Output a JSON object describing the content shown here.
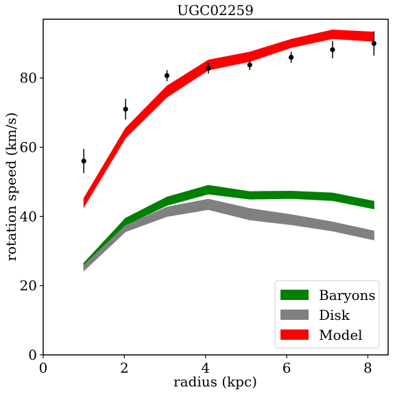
{
  "chart_data": {
    "type": "line",
    "title": "UGC02259",
    "xlabel": "radius (kpc)",
    "ylabel": "rotation speed (km/s)",
    "xlim": [
      0,
      8.5
    ],
    "ylim": [
      0,
      97
    ],
    "xticks": [
      0,
      2,
      4,
      6,
      8
    ],
    "yticks": [
      0,
      20,
      40,
      60,
      80
    ],
    "grid": false,
    "legend_position": "lower-right",
    "x": [
      1.0,
      2.03,
      3.05,
      4.07,
      5.09,
      6.11,
      7.13,
      8.15
    ],
    "series": [
      {
        "name": "Baryons",
        "kind": "band",
        "color": "#008000",
        "lower": [
          25.0,
          37.5,
          43.2,
          46.5,
          45.0,
          45.2,
          44.6,
          42.2
        ],
        "upper": [
          26.5,
          39.5,
          45.6,
          49.0,
          47.2,
          47.3,
          46.8,
          44.4
        ]
      },
      {
        "name": "Disk",
        "kind": "band",
        "color": "#808080",
        "lower": [
          24.3,
          35.6,
          40.0,
          42.0,
          39.0,
          37.6,
          35.8,
          33.2
        ],
        "upper": [
          25.9,
          37.4,
          42.7,
          45.0,
          42.3,
          40.5,
          38.4,
          35.8
        ]
      },
      {
        "name": "Model",
        "kind": "band",
        "color": "#ff0000",
        "lower": [
          42.7,
          62.7,
          74.5,
          82.3,
          84.8,
          88.8,
          91.4,
          90.6
        ],
        "upper": [
          45.2,
          65.5,
          77.7,
          85.2,
          87.5,
          91.2,
          93.9,
          93.3
        ]
      },
      {
        "kind": "points_with_errorbars",
        "color": "#000000",
        "y": [
          56.0,
          71.0,
          80.7,
          82.8,
          83.8,
          86.0,
          88.2,
          90.0
        ],
        "yerr": [
          3.5,
          3.0,
          1.6,
          1.5,
          1.5,
          1.6,
          2.5,
          3.5
        ]
      }
    ]
  }
}
